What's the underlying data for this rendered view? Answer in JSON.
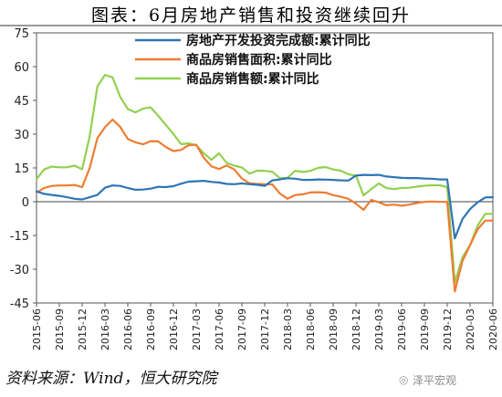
{
  "title": "图表：6月房地产销售和投资继续回升",
  "source": "资料来源：Wind，恒大研究院",
  "watermark": "泽平宏观",
  "chart_data": {
    "type": "line",
    "x": [
      "2015-06",
      "2015-07",
      "2015-08",
      "2015-09",
      "2015-10",
      "2015-11",
      "2015-12",
      "2016-01",
      "2016-02",
      "2016-03",
      "2016-04",
      "2016-05",
      "2016-06",
      "2016-07",
      "2016-08",
      "2016-09",
      "2016-10",
      "2016-11",
      "2016-12",
      "2017-01",
      "2017-02",
      "2017-03",
      "2017-04",
      "2017-05",
      "2017-06",
      "2017-07",
      "2017-08",
      "2017-09",
      "2017-10",
      "2017-11",
      "2017-12",
      "2018-01",
      "2018-02",
      "2018-03",
      "2018-04",
      "2018-05",
      "2018-06",
      "2018-07",
      "2018-08",
      "2018-09",
      "2018-10",
      "2018-11",
      "2018-12",
      "2019-01",
      "2019-02",
      "2019-03",
      "2019-04",
      "2019-05",
      "2019-06",
      "2019-07",
      "2019-08",
      "2019-09",
      "2019-10",
      "2019-11",
      "2019-12",
      "2020-01",
      "2020-02",
      "2020-03",
      "2020-04",
      "2020-05",
      "2020-06"
    ],
    "xticks": [
      "2015-06",
      "2015-09",
      "2015-12",
      "2016-03",
      "2016-06",
      "2016-09",
      "2016-12",
      "2017-03",
      "2017-06",
      "2017-09",
      "2017-12",
      "2018-03",
      "2018-06",
      "2018-09",
      "2018-12",
      "2019-03",
      "2019-06",
      "2019-09",
      "2019-12",
      "2020-03",
      "2020-06"
    ],
    "yticks": [
      75,
      60,
      45,
      30,
      15,
      0,
      -15,
      -30,
      -45
    ],
    "ylim": [
      -45,
      75
    ],
    "series": [
      {
        "name": "房地产开发投资完成额:累计同比",
        "color": "#2e75b6",
        "values": [
          4.6,
          3.5,
          3.0,
          2.6,
          2.0,
          1.3,
          1.0,
          2.0,
          3.0,
          6.2,
          7.2,
          7.0,
          6.1,
          5.3,
          5.4,
          5.8,
          6.6,
          6.5,
          6.9,
          8.0,
          8.9,
          9.1,
          9.3,
          8.8,
          8.5,
          7.9,
          7.8,
          8.1,
          7.8,
          7.5,
          7.0,
          9.5,
          9.9,
          10.4,
          10.2,
          9.7,
          9.7,
          9.9,
          9.8,
          9.7,
          9.5,
          9.4,
          11.6,
          11.9,
          11.8,
          11.9,
          11.2,
          10.9,
          10.6,
          10.5,
          10.5,
          10.3,
          10.2,
          9.9,
          9.9,
          -16.3,
          -7.7,
          -3.3,
          -0.3,
          1.9,
          2.0
        ]
      },
      {
        "name": "商品房销售面积:累计同比",
        "color": "#ed7d31",
        "values": [
          4.0,
          6.1,
          7.0,
          7.2,
          7.2,
          7.4,
          6.5,
          15.0,
          28.2,
          33.1,
          36.5,
          33.2,
          27.9,
          26.4,
          25.5,
          26.9,
          26.8,
          24.3,
          22.5,
          23.0,
          25.1,
          25.3,
          19.5,
          15.7,
          14.5,
          16.1,
          14.3,
          10.3,
          8.2,
          7.9,
          7.7,
          7.7,
          3.6,
          1.3,
          2.9,
          3.3,
          4.1,
          4.2,
          4.0,
          2.9,
          2.2,
          1.3,
          -0.9,
          -3.6,
          0.8,
          -0.3,
          -1.6,
          -1.3,
          -1.8,
          -1.3,
          -0.6,
          -0.1,
          0.1,
          -0.1,
          -0.1,
          -39.9,
          -26.3,
          -19.3,
          -12.3,
          -8.4,
          -8.4
        ]
      },
      {
        "name": "商品房销售额:累计同比",
        "color": "#92d050",
        "values": [
          10.0,
          14.3,
          15.6,
          15.3,
          15.3,
          16.0,
          14.4,
          29.1,
          51.2,
          56.3,
          55.2,
          46.6,
          41.2,
          39.7,
          41.3,
          41.9,
          38.2,
          34.1,
          30.1,
          25.6,
          25.9,
          25.1,
          21.5,
          18.6,
          21.5,
          17.2,
          16.0,
          15.2,
          12.5,
          13.8,
          13.7,
          13.3,
          10.4,
          10.6,
          13.7,
          13.2,
          13.7,
          15.0,
          15.4,
          14.3,
          13.8,
          12.2,
          11.6,
          2.8,
          5.6,
          8.1,
          6.1,
          5.6,
          6.1,
          6.2,
          6.7,
          7.1,
          7.3,
          7.3,
          6.5,
          -35.9,
          -24.7,
          -19.3,
          -10.6,
          -5.4,
          -5.4
        ]
      }
    ]
  }
}
